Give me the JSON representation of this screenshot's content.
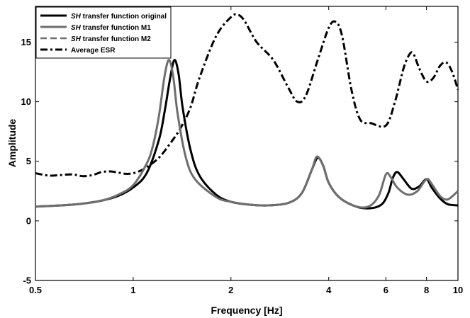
{
  "chart_data": {
    "type": "line",
    "xlabel": "Frequency [Hz]",
    "ylabel": "Amplitude",
    "xscale": "log",
    "xlim": [
      0.5,
      10
    ],
    "ylim": [
      -5,
      18
    ],
    "xticks": [
      0.5,
      1,
      2,
      4,
      6,
      8,
      10
    ],
    "xtick_labels": [
      "0.5",
      "1",
      "2",
      "4",
      "6",
      "8",
      "10"
    ],
    "yticks": [
      -5,
      0,
      5,
      10,
      15
    ],
    "ytick_labels": [
      "-5",
      "0",
      "5",
      "10",
      "15"
    ],
    "grid": false,
    "legend_position": "top-left",
    "series": [
      {
        "name_italic": "SH",
        "name_rest": " transfer function original",
        "color": "#000000",
        "style": "solid",
        "x": [
          0.5,
          0.6,
          0.7,
          0.8,
          0.9,
          1.0,
          1.1,
          1.2,
          1.25,
          1.3,
          1.34,
          1.38,
          1.42,
          1.5,
          1.6,
          1.8,
          2.0,
          2.3,
          2.6,
          3.0,
          3.3,
          3.55,
          3.7,
          3.85,
          4.0,
          4.3,
          4.8,
          5.3,
          5.8,
          6.1,
          6.3,
          6.5,
          6.8,
          7.2,
          7.6,
          8.0,
          8.3,
          8.8,
          9.3,
          10.0
        ],
        "y": [
          1.2,
          1.3,
          1.45,
          1.7,
          2.1,
          2.8,
          4.0,
          6.8,
          9.2,
          12.0,
          13.5,
          12.3,
          9.5,
          6.0,
          3.8,
          2.2,
          1.6,
          1.35,
          1.3,
          1.5,
          2.3,
          4.3,
          5.3,
          4.6,
          3.2,
          2.0,
          1.25,
          1.05,
          1.35,
          2.3,
          3.6,
          4.1,
          3.5,
          2.7,
          2.9,
          3.5,
          2.8,
          1.9,
          1.4,
          1.3
        ]
      },
      {
        "name_italic": "SH",
        "name_rest": " transfer function M1",
        "color": "#6e6e6e",
        "style": "solid",
        "x": [
          0.5,
          0.6,
          0.7,
          0.8,
          0.9,
          1.0,
          1.1,
          1.15,
          1.2,
          1.25,
          1.29,
          1.33,
          1.37,
          1.45,
          1.55,
          1.8,
          2.0,
          2.3,
          2.6,
          3.0,
          3.3,
          3.55,
          3.68,
          3.85,
          4.0,
          4.3,
          4.8,
          5.3,
          5.7,
          6.0,
          6.2,
          6.5,
          7.0,
          7.5,
          8.0,
          8.3,
          8.8,
          9.3,
          10.0
        ],
        "y": [
          1.2,
          1.3,
          1.45,
          1.7,
          2.2,
          3.0,
          4.8,
          6.3,
          8.8,
          12.2,
          13.5,
          12.0,
          9.0,
          5.4,
          3.5,
          2.0,
          1.6,
          1.35,
          1.3,
          1.5,
          2.3,
          4.3,
          5.4,
          4.6,
          3.2,
          2.0,
          1.25,
          1.2,
          2.1,
          3.9,
          3.7,
          2.8,
          2.2,
          2.5,
          3.5,
          3.1,
          2.1,
          1.8,
          2.5
        ]
      },
      {
        "name_italic": "SH",
        "name_rest": " transfer function M2",
        "color": "#6e6e6e",
        "style": "dashed",
        "x": [
          0.5,
          0.6,
          0.7,
          0.8,
          0.9,
          1.0,
          1.1,
          1.15,
          1.2,
          1.25,
          1.29,
          1.33,
          1.37,
          1.45,
          1.55,
          1.8,
          2.0,
          2.3,
          2.6,
          3.0,
          3.3,
          3.55,
          3.68,
          3.85,
          4.0,
          4.3,
          4.8,
          5.3,
          5.7,
          6.0,
          6.2,
          6.5,
          7.0,
          7.5,
          8.0,
          8.3,
          8.8,
          9.3,
          10.0
        ],
        "y": [
          1.2,
          1.3,
          1.45,
          1.7,
          2.2,
          3.0,
          4.8,
          6.3,
          8.8,
          12.2,
          13.5,
          12.0,
          9.0,
          5.4,
          3.5,
          2.0,
          1.6,
          1.35,
          1.3,
          1.5,
          2.3,
          4.3,
          5.4,
          4.6,
          3.2,
          2.0,
          1.25,
          1.2,
          2.1,
          3.9,
          3.7,
          2.8,
          2.2,
          2.5,
          3.5,
          3.1,
          2.1,
          1.8,
          2.5
        ]
      },
      {
        "name_italic": "",
        "name_rest": "Average ESR",
        "color": "#000000",
        "style": "dashdot",
        "x": [
          0.5,
          0.55,
          0.6,
          0.65,
          0.7,
          0.75,
          0.8,
          0.85,
          0.9,
          0.95,
          1.0,
          1.05,
          1.1,
          1.2,
          1.3,
          1.4,
          1.5,
          1.6,
          1.8,
          2.0,
          2.1,
          2.2,
          2.4,
          2.7,
          3.0,
          3.2,
          3.4,
          3.7,
          4.0,
          4.2,
          4.4,
          4.7,
          5.0,
          5.4,
          6.0,
          6.4,
          6.8,
          7.1,
          7.3,
          7.6,
          8.0,
          8.4,
          8.8,
          9.2,
          9.6,
          10.0
        ],
        "y": [
          4.0,
          3.8,
          3.85,
          3.9,
          3.75,
          3.85,
          4.1,
          4.15,
          4.05,
          3.95,
          4.0,
          4.2,
          4.5,
          5.3,
          6.5,
          7.8,
          9.5,
          12.0,
          15.5,
          17.1,
          17.3,
          16.8,
          15.0,
          13.5,
          11.2,
          10.0,
          10.5,
          13.5,
          16.2,
          16.7,
          15.5,
          11.0,
          8.5,
          8.2,
          8.0,
          10.0,
          12.8,
          14.0,
          14.0,
          12.8,
          11.7,
          12.0,
          13.0,
          13.3,
          12.5,
          11.0
        ]
      }
    ]
  }
}
